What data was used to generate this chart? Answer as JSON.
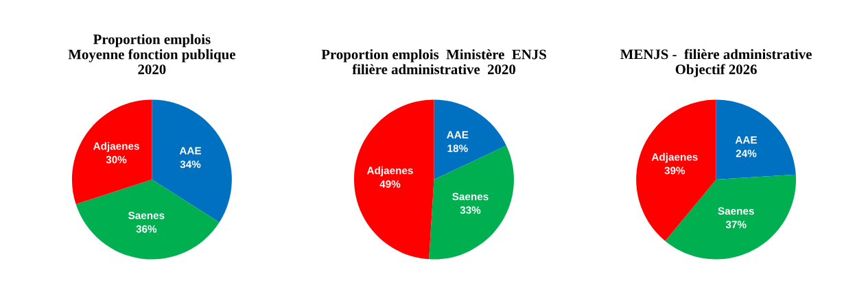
{
  "chart_data": [
    {
      "type": "pie",
      "title": "Proportion emplois\nMoyenne fonction publique\n2020",
      "categories": [
        "AAE",
        "Saenes",
        "Adjaenes"
      ],
      "values": [
        34,
        36,
        30
      ],
      "value_labels": [
        "34%",
        "36%",
        "30%"
      ],
      "colors": [
        "#0070c0",
        "#00b050",
        "#ff0000"
      ]
    },
    {
      "type": "pie",
      "title": "Proportion emplois  Ministère  ENJS\nfilière administrative  2020",
      "categories": [
        "AAE",
        "Saenes",
        "Adjaenes"
      ],
      "values": [
        18,
        33,
        49
      ],
      "value_labels": [
        "18%",
        "33%",
        "49%"
      ],
      "colors": [
        "#0070c0",
        "#00b050",
        "#ff0000"
      ]
    },
    {
      "type": "pie",
      "title": "MENJS -  filière administrative\nObjectif 2026",
      "categories": [
        "AAE",
        "Saenes",
        "Adjaenes"
      ],
      "values": [
        24,
        37,
        39
      ],
      "value_labels": [
        "24%",
        "37%",
        "39%"
      ],
      "colors": [
        "#0070c0",
        "#00b050",
        "#ff0000"
      ]
    }
  ]
}
